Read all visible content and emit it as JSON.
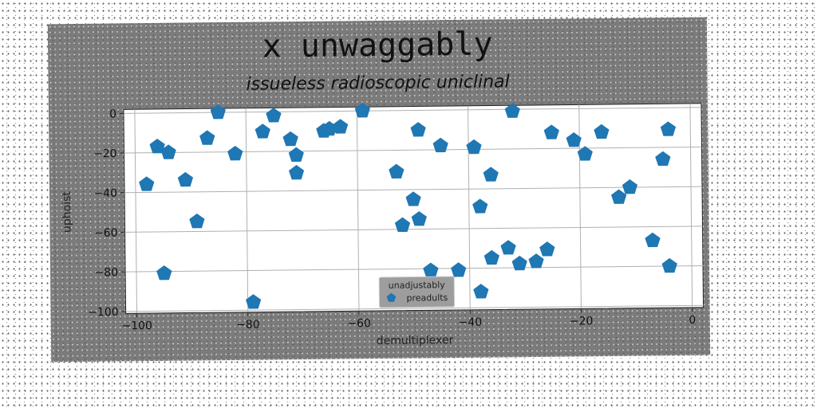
{
  "chart_data": {
    "type": "scatter",
    "title": "x unwaggably",
    "subtitle": "issueless radioscopic uniclinal",
    "xlabel": "demultiplexer",
    "ylabel": "uphoist",
    "xlim": [
      -102,
      2
    ],
    "ylim": [
      -101,
      2
    ],
    "xticks": [
      -100,
      -80,
      -60,
      -40,
      -20,
      0
    ],
    "yticks": [
      0,
      -20,
      -40,
      -60,
      -80,
      -100
    ],
    "grid": true,
    "legend": {
      "title": "unadjustably",
      "placement": "bottom-center"
    },
    "series": [
      {
        "name": "preadults",
        "color": "#1f77b4",
        "marker": "pentagon",
        "points": [
          [
            -98,
            -36
          ],
          [
            -96,
            -17
          ],
          [
            -94,
            -20
          ],
          [
            -95,
            -81
          ],
          [
            -91,
            -34
          ],
          [
            -89,
            -55
          ],
          [
            -87,
            -13
          ],
          [
            -85,
            0
          ],
          [
            -82,
            -21
          ],
          [
            -79,
            -96
          ],
          [
            -77,
            -10
          ],
          [
            -75,
            -2
          ],
          [
            -72,
            -14
          ],
          [
            -71,
            -22
          ],
          [
            -71,
            -31
          ],
          [
            -66,
            -10
          ],
          [
            -65,
            -9
          ],
          [
            -63,
            -8
          ],
          [
            -59,
            0
          ],
          [
            -53,
            -31
          ],
          [
            -52,
            -58
          ],
          [
            -50,
            -45
          ],
          [
            -49,
            -55
          ],
          [
            -49,
            -10
          ],
          [
            -47,
            -81
          ],
          [
            -45,
            -18
          ],
          [
            -42,
            -81
          ],
          [
            -39,
            -19
          ],
          [
            -38,
            -92
          ],
          [
            -38,
            -49
          ],
          [
            -36,
            -75
          ],
          [
            -36,
            -33
          ],
          [
            -33,
            -70
          ],
          [
            -32,
            -1
          ],
          [
            -31,
            -78
          ],
          [
            -28,
            -77
          ],
          [
            -26,
            -71
          ],
          [
            -25,
            -12
          ],
          [
            -21,
            -16
          ],
          [
            -19,
            -23
          ],
          [
            -16,
            -12
          ],
          [
            -13,
            -45
          ],
          [
            -11,
            -40
          ],
          [
            -7,
            -67
          ],
          [
            -5,
            -26
          ],
          [
            -4,
            -80
          ],
          [
            -4,
            -11
          ]
        ]
      }
    ]
  }
}
